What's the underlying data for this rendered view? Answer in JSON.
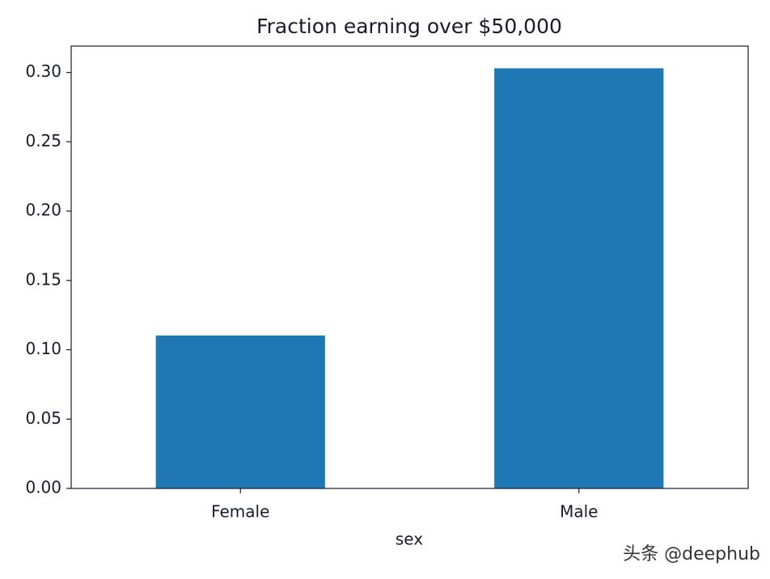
{
  "chart_data": {
    "type": "bar",
    "title": "Fraction earning over $50,000",
    "x_label": "sex",
    "categories": [
      "Female",
      "Male"
    ],
    "values": [
      0.1103,
      0.303
    ],
    "color": "#1f77b4",
    "ylim": [
      0,
      0.319
    ],
    "yticks": [
      {
        "value": 0,
        "label": "0.00"
      },
      0.05,
      {
        "value": 0.1,
        "label": "0.10"
      },
      0.15,
      {
        "value": 0.2,
        "label": "0.20"
      },
      0.25,
      {
        "value": 0.3,
        "label": "0.30"
      }
    ],
    "grid": false
  },
  "watermark": "头条 @deephub"
}
